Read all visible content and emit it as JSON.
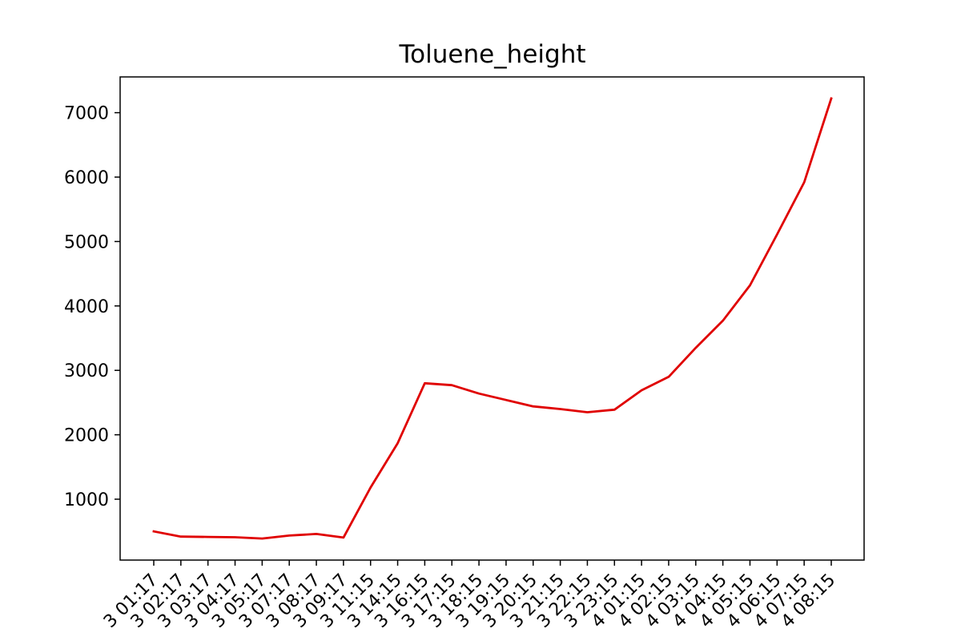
{
  "chart_data": {
    "type": "line",
    "title": "Toluene_height",
    "xlabel": "",
    "ylabel": "",
    "x": [
      "3 01:17",
      "3 02:17",
      "3 03:17",
      "3 04:17",
      "3 05:17",
      "3 07:17",
      "3 08:17",
      "3 09:17",
      "3 11:15",
      "3 14:15",
      "3 16:15",
      "3 17:15",
      "3 18:15",
      "3 19:15",
      "3 20:15",
      "3 21:15",
      "3 22:15",
      "3 23:15",
      "4 01:15",
      "4 02:15",
      "4 03:15",
      "4 04:15",
      "4 05:15",
      "4 06:15",
      "4 07:15",
      "4 08:15"
    ],
    "series": [
      {
        "color": "#e00000",
        "values": [
          500,
          420,
          415,
          410,
          390,
          435,
          460,
          405,
          1180,
          1870,
          2800,
          2770,
          2640,
          2540,
          2440,
          2400,
          2350,
          2390,
          2690,
          2900,
          3350,
          3770,
          4320,
          5110,
          5920,
          7220
        ]
      }
    ],
    "yticks": [
      1000,
      2000,
      3000,
      4000,
      5000,
      6000,
      7000
    ],
    "ylim": [
      55,
      7555
    ],
    "grid": false,
    "legend": "none"
  }
}
